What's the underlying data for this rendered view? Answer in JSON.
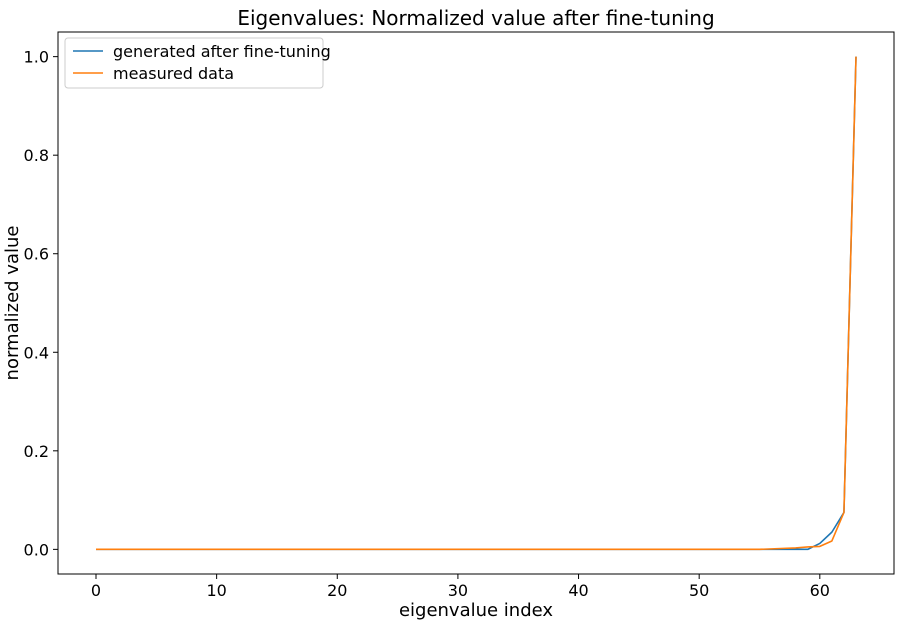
{
  "chart_data": {
    "type": "line",
    "title": "Eigenvalues: Normalized value after fine-tuning",
    "xlabel": "eigenvalue index",
    "ylabel": "normalized value",
    "xlim": [
      -3.15,
      66.15
    ],
    "ylim": [
      -0.05,
      1.05
    ],
    "xticks": [
      0,
      10,
      20,
      30,
      40,
      50,
      60
    ],
    "xtick_labels": [
      "0",
      "10",
      "20",
      "30",
      "40",
      "50",
      "60"
    ],
    "yticks": [
      0.0,
      0.2,
      0.4,
      0.6,
      0.8,
      1.0
    ],
    "ytick_labels": [
      "0.0",
      "0.2",
      "0.4",
      "0.6",
      "0.8",
      "1.0"
    ],
    "grid": false,
    "legend": "top-left",
    "series": [
      {
        "name": "generated after fine-tuning",
        "color": "#1f77b4",
        "x": [
          0,
          1,
          2,
          3,
          4,
          5,
          6,
          7,
          8,
          9,
          10,
          11,
          12,
          13,
          14,
          15,
          16,
          17,
          18,
          19,
          20,
          21,
          22,
          23,
          24,
          25,
          26,
          27,
          28,
          29,
          30,
          31,
          32,
          33,
          34,
          35,
          36,
          37,
          38,
          39,
          40,
          41,
          42,
          43,
          44,
          45,
          46,
          47,
          48,
          49,
          50,
          51,
          52,
          53,
          54,
          55,
          56,
          57,
          58,
          59,
          60,
          61,
          62,
          63
        ],
        "y": [
          0,
          0,
          0,
          0,
          0,
          0,
          0,
          0,
          0,
          0,
          0,
          0,
          0,
          0,
          0,
          0,
          0,
          0,
          0,
          0,
          0,
          0,
          0,
          0,
          0,
          0,
          0,
          0,
          0,
          0,
          0,
          0,
          0,
          0,
          0,
          0,
          0,
          0,
          0,
          0,
          0,
          0,
          0,
          0,
          0,
          0,
          0,
          0,
          0,
          0,
          0,
          0,
          0,
          0,
          0,
          0,
          0,
          0,
          0,
          0,
          0.012,
          0.035,
          0.075,
          1.0
        ]
      },
      {
        "name": "measured data",
        "color": "#ff7f0e",
        "x": [
          0,
          1,
          2,
          3,
          4,
          5,
          6,
          7,
          8,
          9,
          10,
          11,
          12,
          13,
          14,
          15,
          16,
          17,
          18,
          19,
          20,
          21,
          22,
          23,
          24,
          25,
          26,
          27,
          28,
          29,
          30,
          31,
          32,
          33,
          34,
          35,
          36,
          37,
          38,
          39,
          40,
          41,
          42,
          43,
          44,
          45,
          46,
          47,
          48,
          49,
          50,
          51,
          52,
          53,
          54,
          55,
          56,
          57,
          58,
          59,
          60,
          61,
          62,
          63
        ],
        "y": [
          0,
          0,
          0,
          0,
          0,
          0,
          0,
          0,
          0,
          0,
          0,
          0,
          0,
          0,
          0,
          0,
          0,
          0,
          0,
          0,
          0,
          0,
          0,
          0,
          0,
          0,
          0,
          0,
          0,
          0,
          0,
          0,
          0,
          0,
          0,
          0,
          0,
          0,
          0,
          0,
          0,
          0,
          0,
          0,
          0,
          0,
          0,
          0,
          0,
          0,
          0,
          0,
          0,
          0,
          0,
          0,
          0.001,
          0.002,
          0.003,
          0.005,
          0.006,
          0.017,
          0.075,
          1.0
        ]
      }
    ]
  }
}
